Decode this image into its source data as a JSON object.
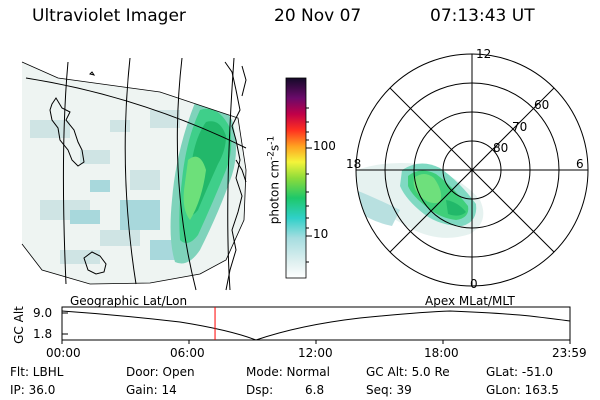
{
  "header": {
    "instrument": "Ultraviolet Imager",
    "date": "20 Nov 07",
    "time": "07:13:43 UT"
  },
  "colorbar": {
    "unit_prefix": "photon cm",
    "unit_exp1": "-2",
    "unit_mid": "s",
    "unit_exp2": "-1",
    "ticks": [
      "100",
      "10"
    ]
  },
  "geo_panel": {
    "label": "Geographic Lat/Lon"
  },
  "polar_panel": {
    "label": "Apex  MLat/MLT",
    "mlt_labels": {
      "top": "12",
      "left": "18",
      "right": "6",
      "bottom": "0"
    },
    "lat_labels": [
      "60",
      "70",
      "80"
    ]
  },
  "altitude_plot": {
    "ylabel": "GC Alt",
    "yticks": [
      "9.0",
      "1.8"
    ],
    "xticks": [
      "00:00",
      "06:00",
      "12:00",
      "18:00",
      "23:59"
    ],
    "current_time_hours": 7.23,
    "marker_color": "#ff0000"
  },
  "info": {
    "flt": "Flt: LBHL",
    "ip": "IP: 36.0",
    "door": "Door: Open",
    "gain": "Gain: 14",
    "mode": "Mode: Normal",
    "dsp_label": "Dsp:",
    "dsp_value": "6.8",
    "gc_alt": "GC Alt: 5.0 Re",
    "seq": "Seq: 39",
    "glat": "GLat: -51.0",
    "glon": "GLon: 163.5"
  }
}
